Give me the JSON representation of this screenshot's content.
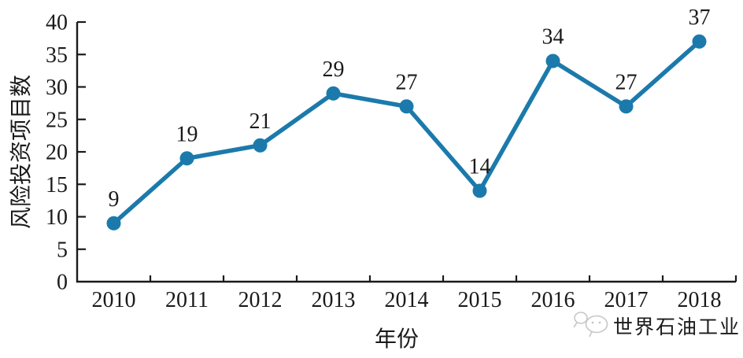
{
  "figure": {
    "watermark": {
      "text": "世界石油工业",
      "icon": "wechat-bubbles-icon",
      "color": "#c7c7c7"
    }
  },
  "chart_data": {
    "type": "line",
    "title": "",
    "categories": [
      "2010",
      "2011",
      "2012",
      "2013",
      "2014",
      "2015",
      "2016",
      "2017",
      "2018"
    ],
    "series": [
      {
        "name": "风险投资项目数",
        "values": [
          9,
          19,
          21,
          29,
          27,
          14,
          34,
          27,
          37
        ]
      }
    ],
    "data_labels": [
      9,
      19,
      21,
      29,
      27,
      14,
      34,
      27,
      37
    ],
    "xlabel": "年份",
    "ylabel": "风险投资项目数",
    "ylim": [
      0,
      40
    ],
    "yticks": [
      0,
      5,
      10,
      15,
      20,
      25,
      30,
      35,
      40
    ],
    "grid": false,
    "legend_position": "none",
    "line_color": "#1b7aab",
    "marker_color": "#1b7aab",
    "axis_color": "#1a1a1a",
    "marker": "circle"
  }
}
